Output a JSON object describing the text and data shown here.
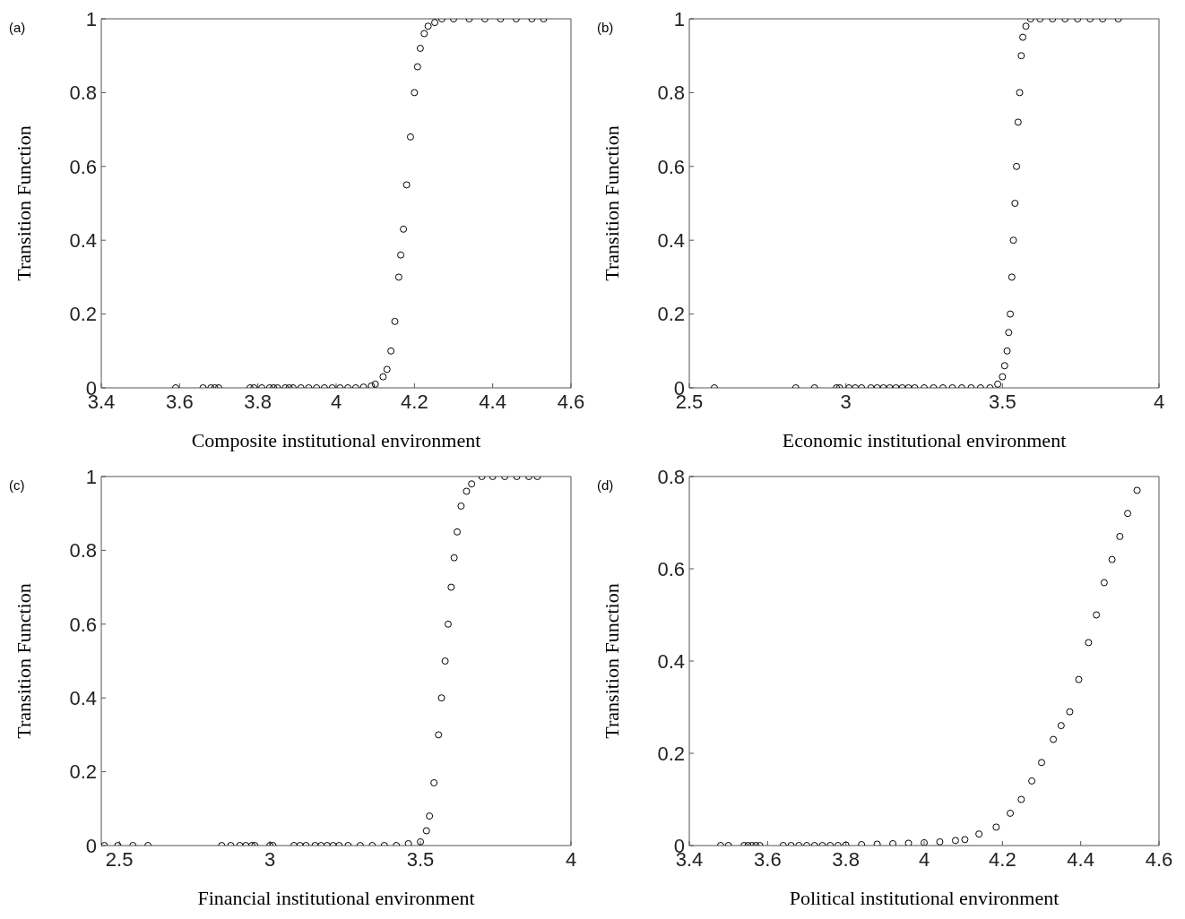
{
  "chart_data": [
    {
      "type": "scatter",
      "xlabel": "Composite institutional environment",
      "ylabel": "Transition Function",
      "annotations": [
        "(a)"
      ],
      "xlim": [
        3.4,
        4.6
      ],
      "ylim": [
        0,
        1
      ],
      "xticks": [
        3.4,
        3.6,
        3.8,
        4,
        4.2,
        4.4,
        4.6
      ],
      "yticks": [
        0,
        0.2,
        0.4,
        0.6,
        0.8,
        1
      ],
      "grid": false,
      "legend": false,
      "marker": "circle",
      "series": [
        {
          "color": "#000000",
          "x": [
            3.59,
            3.66,
            3.68,
            3.69,
            3.7,
            3.78,
            3.79,
            3.81,
            3.83,
            3.84,
            3.85,
            3.87,
            3.88,
            3.89,
            3.91,
            3.93,
            3.95,
            3.97,
            3.99,
            4.01,
            4.03,
            4.05,
            4.07,
            4.09,
            4.1,
            4.12,
            4.13,
            4.14,
            4.15,
            4.16,
            4.165,
            4.172,
            4.18,
            4.19,
            4.2,
            4.208,
            4.215,
            4.225,
            4.235,
            4.252,
            4.27,
            4.3,
            4.34,
            4.38,
            4.42,
            4.46,
            4.5,
            4.53
          ],
          "values": [
            0,
            0,
            0,
            0,
            0,
            0,
            0,
            0,
            0,
            0,
            0,
            0,
            0,
            0,
            0,
            0,
            0,
            0,
            0,
            0,
            0,
            0,
            0.002,
            0.005,
            0.01,
            0.03,
            0.05,
            0.1,
            0.18,
            0.3,
            0.36,
            0.43,
            0.55,
            0.68,
            0.8,
            0.87,
            0.92,
            0.96,
            0.98,
            0.99,
            1,
            1,
            1,
            1,
            1,
            1,
            1,
            1
          ]
        }
      ]
    },
    {
      "type": "scatter",
      "xlabel": "Economic institutional environment",
      "ylabel": "Transition Function",
      "annotations": [
        "(b)"
      ],
      "xlim": [
        2.5,
        4
      ],
      "ylim": [
        0,
        1
      ],
      "xticks": [
        2.5,
        3,
        3.5,
        4
      ],
      "yticks": [
        0,
        0.2,
        0.4,
        0.6,
        0.8,
        1
      ],
      "grid": false,
      "legend": false,
      "marker": "circle",
      "series": [
        {
          "color": "#000000",
          "x": [
            2.58,
            2.84,
            2.9,
            2.97,
            2.98,
            3.01,
            3.03,
            3.05,
            3.08,
            3.1,
            3.12,
            3.14,
            3.16,
            3.18,
            3.2,
            3.22,
            3.25,
            3.28,
            3.31,
            3.34,
            3.37,
            3.4,
            3.43,
            3.46,
            3.485,
            3.5,
            3.507,
            3.515,
            3.52,
            3.525,
            3.53,
            3.535,
            3.54,
            3.545,
            3.55,
            3.555,
            3.56,
            3.565,
            3.575,
            3.59,
            3.62,
            3.66,
            3.7,
            3.74,
            3.78,
            3.82,
            3.87
          ],
          "values": [
            0,
            0,
            0,
            0,
            0,
            0,
            0,
            0,
            0,
            0,
            0,
            0,
            0,
            0,
            0,
            0,
            0,
            0,
            0,
            0,
            0,
            0,
            0,
            0,
            0.01,
            0.03,
            0.06,
            0.1,
            0.15,
            0.2,
            0.3,
            0.4,
            0.5,
            0.6,
            0.72,
            0.8,
            0.9,
            0.95,
            0.98,
            1,
            1,
            1,
            1,
            1,
            1,
            1,
            1
          ]
        }
      ]
    },
    {
      "type": "scatter",
      "xlabel": "Financial institutional environment",
      "ylabel": "Transition Function",
      "annotations": [
        "(c)"
      ],
      "xlim": [
        2.44,
        4
      ],
      "ylim": [
        0,
        1
      ],
      "xticks": [
        2.5,
        3,
        3.5,
        4
      ],
      "yticks": [
        0,
        0.2,
        0.4,
        0.6,
        0.8,
        1
      ],
      "grid": false,
      "legend": false,
      "marker": "circle",
      "series": [
        {
          "color": "#000000",
          "x": [
            2.45,
            2.495,
            2.545,
            2.595,
            2.84,
            2.87,
            2.9,
            2.92,
            2.94,
            2.95,
            3,
            3.01,
            3.08,
            3.1,
            3.12,
            3.15,
            3.17,
            3.19,
            3.21,
            3.23,
            3.26,
            3.3,
            3.34,
            3.38,
            3.42,
            3.46,
            3.5,
            3.52,
            3.53,
            3.545,
            3.56,
            3.57,
            3.582,
            3.592,
            3.602,
            3.612,
            3.622,
            3.635,
            3.653,
            3.67,
            3.704,
            3.74,
            3.78,
            3.82,
            3.86,
            3.888
          ],
          "values": [
            0,
            0,
            0,
            0,
            0,
            0,
            0,
            0,
            0,
            0,
            0,
            0,
            0,
            0,
            0,
            0,
            0,
            0,
            0,
            0,
            0,
            0,
            0,
            0,
            0,
            0.005,
            0.01,
            0.04,
            0.08,
            0.17,
            0.3,
            0.4,
            0.5,
            0.6,
            0.7,
            0.78,
            0.85,
            0.92,
            0.96,
            0.98,
            1,
            1,
            1,
            1,
            1,
            1
          ]
        }
      ]
    },
    {
      "type": "scatter",
      "xlabel": "Political institutional environment",
      "ylabel": "Transition Function",
      "annotations": [
        "(d)"
      ],
      "xlim": [
        3.4,
        4.6
      ],
      "ylim": [
        0,
        0.8
      ],
      "xticks": [
        3.4,
        3.6,
        3.8,
        4,
        4.2,
        4.4,
        4.6
      ],
      "yticks": [
        0,
        0.2,
        0.4,
        0.6,
        0.8
      ],
      "grid": false,
      "legend": false,
      "marker": "circle",
      "series": [
        {
          "color": "#000000",
          "x": [
            3.48,
            3.5,
            3.54,
            3.55,
            3.56,
            3.57,
            3.58,
            3.64,
            3.66,
            3.68,
            3.7,
            3.72,
            3.74,
            3.76,
            3.78,
            3.8,
            3.84,
            3.88,
            3.92,
            3.96,
            4,
            4.04,
            4.08,
            4.104,
            4.14,
            4.184,
            4.22,
            4.248,
            4.275,
            4.3,
            4.33,
            4.35,
            4.372,
            4.395,
            4.42,
            4.44,
            4.46,
            4.48,
            4.5,
            4.52,
            4.544
          ],
          "values": [
            0,
            0,
            0,
            0,
            0,
            0,
            0,
            0,
            0,
            0,
            0,
            0,
            0,
            0,
            0,
            0.001,
            0.002,
            0.003,
            0.004,
            0.005,
            0.006,
            0.008,
            0.011,
            0.013,
            0.025,
            0.04,
            0.07,
            0.1,
            0.14,
            0.18,
            0.23,
            0.26,
            0.29,
            0.36,
            0.44,
            0.5,
            0.57,
            0.62,
            0.67,
            0.72,
            0.77
          ]
        }
      ]
    }
  ]
}
